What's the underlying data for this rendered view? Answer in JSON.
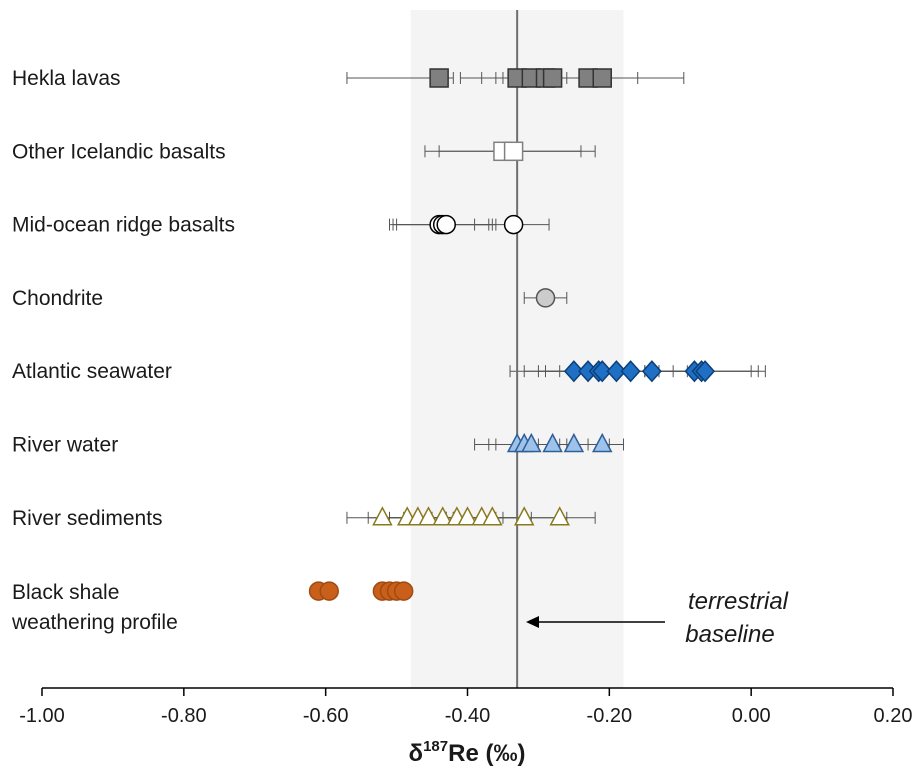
{
  "chart_data": {
    "type": "scatter",
    "xlabel_main": "δ",
    "xlabel_sup": "187",
    "xlabel_rest": "Re (‰)",
    "xlim": [
      -1.0,
      0.2
    ],
    "xticks": [
      -1.0,
      -0.8,
      -0.6,
      -0.4,
      -0.2,
      0.0,
      0.2
    ],
    "xtick_labels": [
      "-1.00",
      "-0.80",
      "-0.60",
      "-0.40",
      "-0.20",
      "0.00",
      "0.20"
    ],
    "baseline": {
      "x": -0.33,
      "band": [
        -0.48,
        -0.18
      ]
    },
    "annotation": {
      "line1": "terrestrial",
      "line2": "baseline"
    },
    "series": [
      {
        "name": "Hekla lavas",
        "label_lines": [
          "Hekla lavas"
        ],
        "marker": "square",
        "fill": "#808080",
        "stroke": "#333333",
        "points": [
          {
            "x": -0.44,
            "lo": -0.57,
            "hi": -0.42
          },
          {
            "x": -0.33,
            "lo": -0.41,
            "hi": -0.26
          },
          {
            "x": -0.31,
            "lo": -0.38,
            "hi": -0.24
          },
          {
            "x": -0.29,
            "lo": -0.36,
            "hi": -0.22
          },
          {
            "x": -0.28,
            "lo": -0.35,
            "hi": -0.21
          },
          {
            "x": -0.23,
            "lo": -0.3,
            "hi": -0.16
          },
          {
            "x": -0.21,
            "lo": -0.28,
            "hi": -0.095
          }
        ]
      },
      {
        "name": "Other Icelandic basalts",
        "label_lines": [
          "Other Icelandic basalts"
        ],
        "marker": "square",
        "fill": "#ffffff",
        "stroke": "#808080",
        "points": [
          {
            "x": -0.35,
            "lo": -0.46,
            "hi": -0.24
          },
          {
            "x": -0.335,
            "lo": -0.44,
            "hi": -0.22
          }
        ]
      },
      {
        "name": "Mid-ocean ridge basalts",
        "label_lines": [
          "Mid-ocean ridge basalts"
        ],
        "marker": "circle",
        "fill": "#ffffff",
        "stroke": "#000000",
        "points": [
          {
            "x": -0.44,
            "lo": -0.51,
            "hi": -0.37
          },
          {
            "x": -0.435,
            "lo": -0.505,
            "hi": -0.365
          },
          {
            "x": -0.43,
            "lo": -0.5,
            "hi": -0.36
          },
          {
            "x": -0.335,
            "lo": -0.39,
            "hi": -0.285
          }
        ]
      },
      {
        "name": "Chondrite",
        "label_lines": [
          "Chondrite"
        ],
        "marker": "circle",
        "fill": "#cccccc",
        "stroke": "#555555",
        "points": [
          {
            "x": -0.29,
            "lo": -0.32,
            "hi": -0.26
          }
        ]
      },
      {
        "name": "Atlantic seawater",
        "label_lines": [
          "Atlantic seawater"
        ],
        "marker": "diamond",
        "fill": "#1f6fc5",
        "stroke": "#0b3f7a",
        "points": [
          {
            "x": -0.25,
            "lo": -0.34,
            "hi": -0.17
          },
          {
            "x": -0.23,
            "lo": -0.32,
            "hi": -0.15
          },
          {
            "x": -0.215,
            "lo": -0.3,
            "hi": -0.13
          },
          {
            "x": -0.21,
            "lo": -0.29,
            "hi": -0.13
          },
          {
            "x": -0.19,
            "lo": -0.27,
            "hi": -0.11
          },
          {
            "x": -0.17,
            "lo": -0.25,
            "hi": -0.09
          },
          {
            "x": -0.14,
            "lo": -0.22,
            "hi": -0.06
          },
          {
            "x": -0.08,
            "lo": -0.15,
            "hi": 0.0
          },
          {
            "x": -0.07,
            "lo": -0.14,
            "hi": 0.01
          },
          {
            "x": -0.065,
            "lo": -0.13,
            "hi": 0.02
          }
        ]
      },
      {
        "name": "River water",
        "label_lines": [
          "River water"
        ],
        "marker": "triangle",
        "fill": "#9ec3ea",
        "stroke": "#2f5f98",
        "points": [
          {
            "x": -0.33,
            "lo": -0.39,
            "hi": -0.28
          },
          {
            "x": -0.32,
            "lo": -0.37,
            "hi": -0.27
          },
          {
            "x": -0.31,
            "lo": -0.36,
            "hi": -0.26
          },
          {
            "x": -0.28,
            "lo": -0.33,
            "hi": -0.23
          },
          {
            "x": -0.25,
            "lo": -0.3,
            "hi": -0.2
          },
          {
            "x": -0.21,
            "lo": -0.25,
            "hi": -0.18
          }
        ]
      },
      {
        "name": "River sediments",
        "label_lines": [
          "River sediments"
        ],
        "marker": "triangle",
        "fill": "#ffffff",
        "stroke": "#8a7a1e",
        "points": [
          {
            "x": -0.52,
            "lo": -0.57,
            "hi": -0.47
          },
          {
            "x": -0.485,
            "lo": -0.54,
            "hi": -0.43
          },
          {
            "x": -0.47,
            "lo": -0.52,
            "hi": -0.42
          },
          {
            "x": -0.455,
            "lo": -0.51,
            "hi": -0.4
          },
          {
            "x": -0.435,
            "lo": -0.49,
            "hi": -0.38
          },
          {
            "x": -0.415,
            "lo": -0.47,
            "hi": -0.36
          },
          {
            "x": -0.4,
            "lo": -0.45,
            "hi": -0.35
          },
          {
            "x": -0.38,
            "lo": -0.43,
            "hi": -0.33
          },
          {
            "x": -0.365,
            "lo": -0.42,
            "hi": -0.31
          },
          {
            "x": -0.32,
            "lo": -0.38,
            "hi": -0.26
          },
          {
            "x": -0.27,
            "lo": -0.32,
            "hi": -0.22
          }
        ]
      },
      {
        "name": "Black shale weathering profile",
        "label_lines": [
          "Black shale",
          "weathering profile"
        ],
        "marker": "circle",
        "fill": "#c8601c",
        "stroke": "#a04a10",
        "points": [
          {
            "x": -0.61
          },
          {
            "x": -0.595
          },
          {
            "x": -0.52
          },
          {
            "x": -0.51
          },
          {
            "x": -0.5
          },
          {
            "x": -0.49
          }
        ]
      }
    ]
  }
}
